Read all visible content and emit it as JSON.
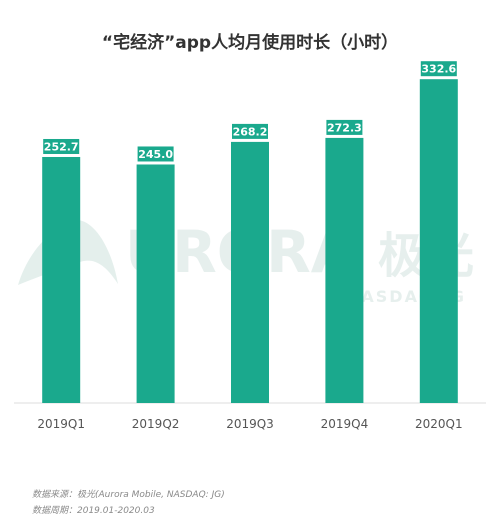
{
  "chart_data": {
    "type": "bar",
    "title": "“宅经济”app人均月使用时长（小时）",
    "categories": [
      "2019Q1",
      "2019Q2",
      "2019Q3",
      "2019Q4",
      "2020Q1"
    ],
    "values": [
      252.7,
      245.0,
      268.2,
      272.3,
      332.6
    ],
    "value_labels": [
      "252.7",
      "245.0",
      "268.2",
      "272.3",
      "332.6"
    ],
    "xlabel": "",
    "ylabel": "",
    "ylim": [
      0,
      340
    ],
    "grid": false,
    "legend": "none"
  },
  "watermark": {
    "wordmark": "URORA",
    "cn": "极光",
    "sub": "NASDAQ:JG"
  },
  "footer": {
    "source": "数据来源：极光(Aurora Mobile, NASDAQ: JG)",
    "period": "数据周期：2019.01-2020.03"
  },
  "colors": {
    "bar": "#1aa98d",
    "label_bg": "#1aa98d",
    "label_text": "#ffffff",
    "watermark": "#d8e6e3"
  }
}
